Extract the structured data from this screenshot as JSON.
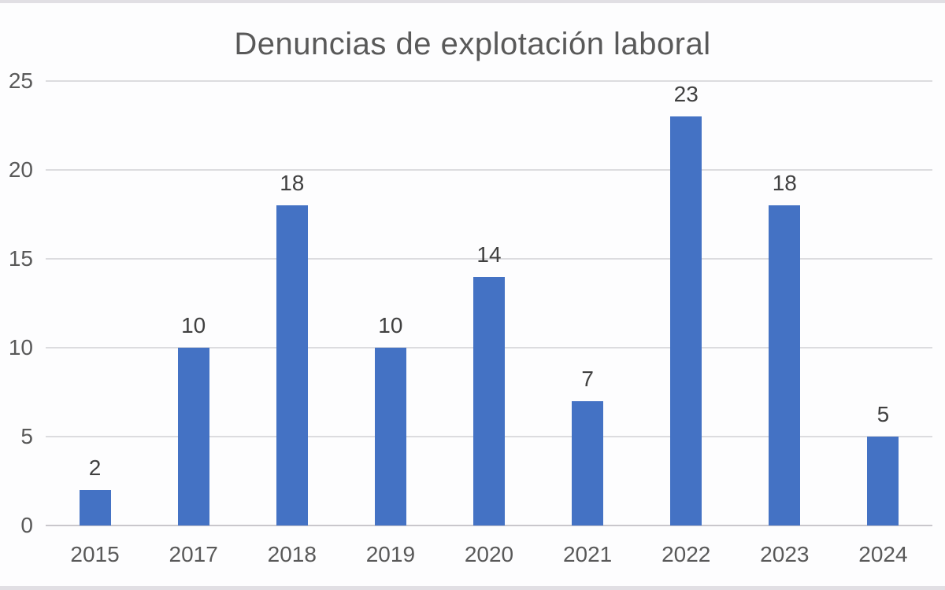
{
  "chart_data": {
    "type": "bar",
    "title": "Denuncias de explotación laboral",
    "categories": [
      "2015",
      "2017",
      "2018",
      "2019",
      "2020",
      "2021",
      "2022",
      "2023",
      "2024"
    ],
    "values": [
      2,
      10,
      18,
      10,
      14,
      7,
      23,
      18,
      5
    ],
    "xlabel": "",
    "ylabel": "",
    "ylim": [
      0,
      25
    ],
    "yticks": [
      0,
      5,
      10,
      15,
      20,
      25
    ],
    "grid": true,
    "legend": false,
    "value_labels_shown": true,
    "colors": {
      "bar": "#4472c4",
      "gridline": "#dcdcdf",
      "axis_line": "#c9c7cc",
      "title_text": "#595959",
      "tick_text": "#595959",
      "value_label_text": "#404040",
      "background": "#fdfdfe",
      "edge_strip": "#e1dfe4"
    }
  }
}
